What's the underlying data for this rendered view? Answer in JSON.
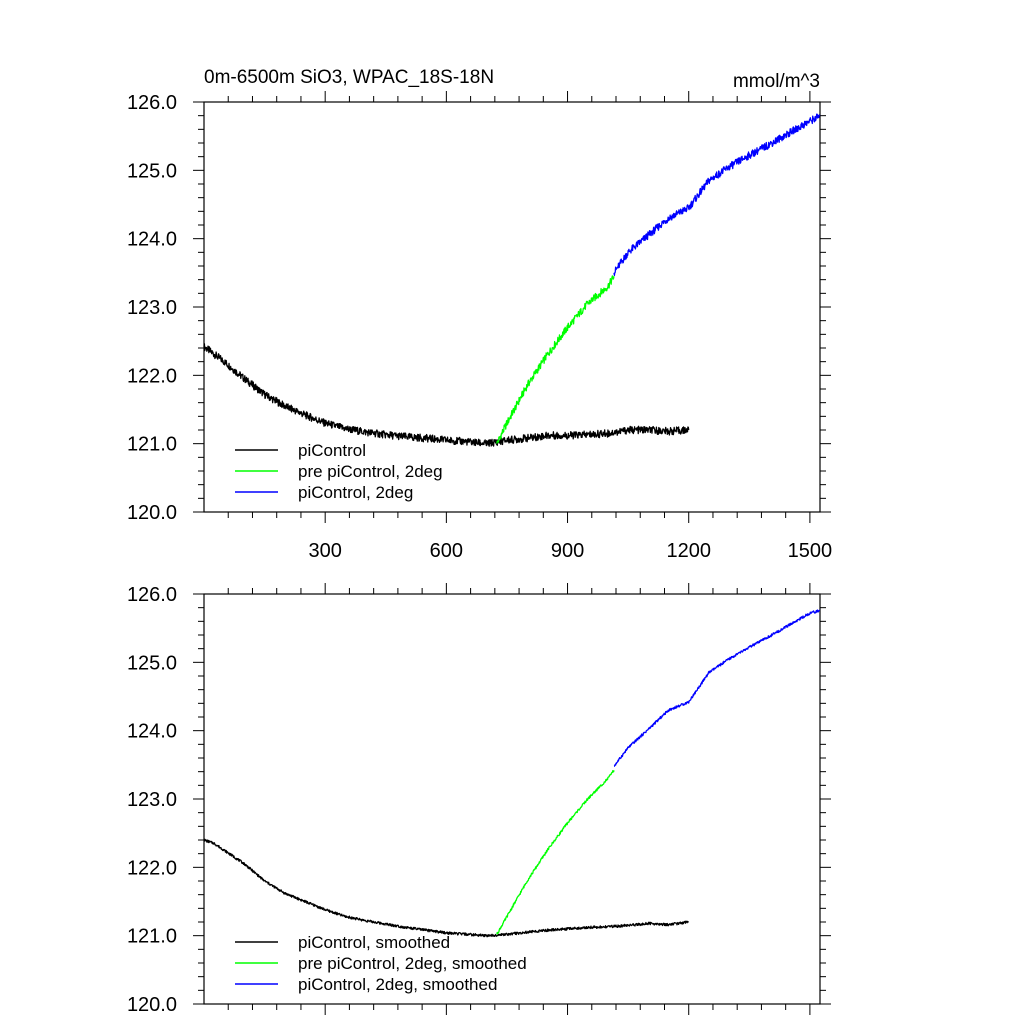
{
  "figure": {
    "title_left": "0m-6500m SiO3, WPAC_18S-18N",
    "title_right": "mmol/m^3"
  },
  "chart_data": [
    {
      "type": "line",
      "panel": "raw",
      "xlim": [
        0,
        1525
      ],
      "ylim": [
        120.0,
        126.0
      ],
      "x_ticks": [
        300,
        600,
        900,
        1200,
        1500
      ],
      "x_tick_labels": [
        "300",
        "600",
        "900",
        "1200",
        "1500"
      ],
      "y_ticks": [
        120.0,
        121.0,
        122.0,
        123.0,
        124.0,
        125.0,
        126.0
      ],
      "y_tick_labels": [
        "120.0",
        "121.0",
        "122.0",
        "123.0",
        "124.0",
        "125.0",
        "126.0"
      ],
      "grid": false,
      "legend_position": "bottom-left",
      "series": [
        {
          "name": "piControl",
          "color": "#000000",
          "x": [
            0,
            50,
            100,
            150,
            200,
            250,
            300,
            350,
            400,
            450,
            500,
            550,
            600,
            650,
            700,
            750,
            800,
            850,
            900,
            950,
            1000,
            1050,
            1100,
            1150,
            1200
          ],
          "y": [
            122.42,
            122.2,
            121.95,
            121.72,
            121.55,
            121.42,
            121.3,
            121.22,
            121.17,
            121.13,
            121.1,
            121.08,
            121.05,
            121.03,
            121.0,
            121.05,
            121.08,
            121.12,
            121.12,
            121.13,
            121.15,
            121.2,
            121.2,
            121.18,
            121.2
          ]
        },
        {
          "name": "pre piControl, 2deg",
          "color": "#00ff00",
          "x": [
            725,
            750,
            800,
            850,
            900,
            950,
            1000,
            1015
          ],
          "y": [
            121.0,
            121.3,
            121.85,
            122.3,
            122.7,
            123.05,
            123.3,
            123.45
          ]
        },
        {
          "name": "piControl, 2deg",
          "color": "#0000ff",
          "x": [
            1015,
            1050,
            1100,
            1150,
            1200,
            1250,
            1300,
            1350,
            1400,
            1450,
            1500,
            1525
          ],
          "y": [
            123.5,
            123.8,
            124.05,
            124.3,
            124.45,
            124.85,
            125.05,
            125.22,
            125.38,
            125.55,
            125.72,
            125.8
          ]
        }
      ]
    },
    {
      "type": "line",
      "panel": "smoothed",
      "xlim": [
        0,
        1525
      ],
      "ylim": [
        120.0,
        126.0
      ],
      "x_ticks": [
        300,
        600,
        900,
        1200,
        1500
      ],
      "y_ticks": [
        120.0,
        121.0,
        122.0,
        123.0,
        124.0,
        125.0,
        126.0
      ],
      "y_tick_labels": [
        "120.0",
        "121.0",
        "122.0",
        "123.0",
        "124.0",
        "125.0",
        "126.0"
      ],
      "grid": false,
      "legend_position": "bottom-left",
      "series": [
        {
          "name": "piControl, smoothed",
          "color": "#000000",
          "x": [
            0,
            25,
            50,
            100,
            150,
            200,
            250,
            300,
            350,
            400,
            450,
            500,
            550,
            600,
            650,
            700,
            750,
            800,
            850,
            900,
            950,
            1000,
            1050,
            1100,
            1150,
            1200
          ],
          "y": [
            122.4,
            122.35,
            122.25,
            122.05,
            121.8,
            121.62,
            121.5,
            121.38,
            121.28,
            121.22,
            121.17,
            121.12,
            121.08,
            121.04,
            121.02,
            121.0,
            121.02,
            121.05,
            121.08,
            121.1,
            121.12,
            121.13,
            121.15,
            121.18,
            121.16,
            121.2
          ]
        },
        {
          "name": "pre piControl, 2deg, smoothed",
          "color": "#00ff00",
          "x": [
            725,
            750,
            800,
            850,
            900,
            950,
            1000,
            1015
          ],
          "y": [
            121.02,
            121.28,
            121.8,
            122.25,
            122.65,
            123.0,
            123.3,
            123.42
          ]
        },
        {
          "name": "piControl, 2deg, smoothed",
          "color": "#0000ff",
          "x": [
            1015,
            1050,
            1100,
            1150,
            1200,
            1250,
            1300,
            1350,
            1400,
            1450,
            1500,
            1525
          ],
          "y": [
            123.48,
            123.75,
            124.02,
            124.3,
            124.42,
            124.85,
            125.05,
            125.22,
            125.38,
            125.55,
            125.72,
            125.76
          ]
        }
      ]
    }
  ]
}
